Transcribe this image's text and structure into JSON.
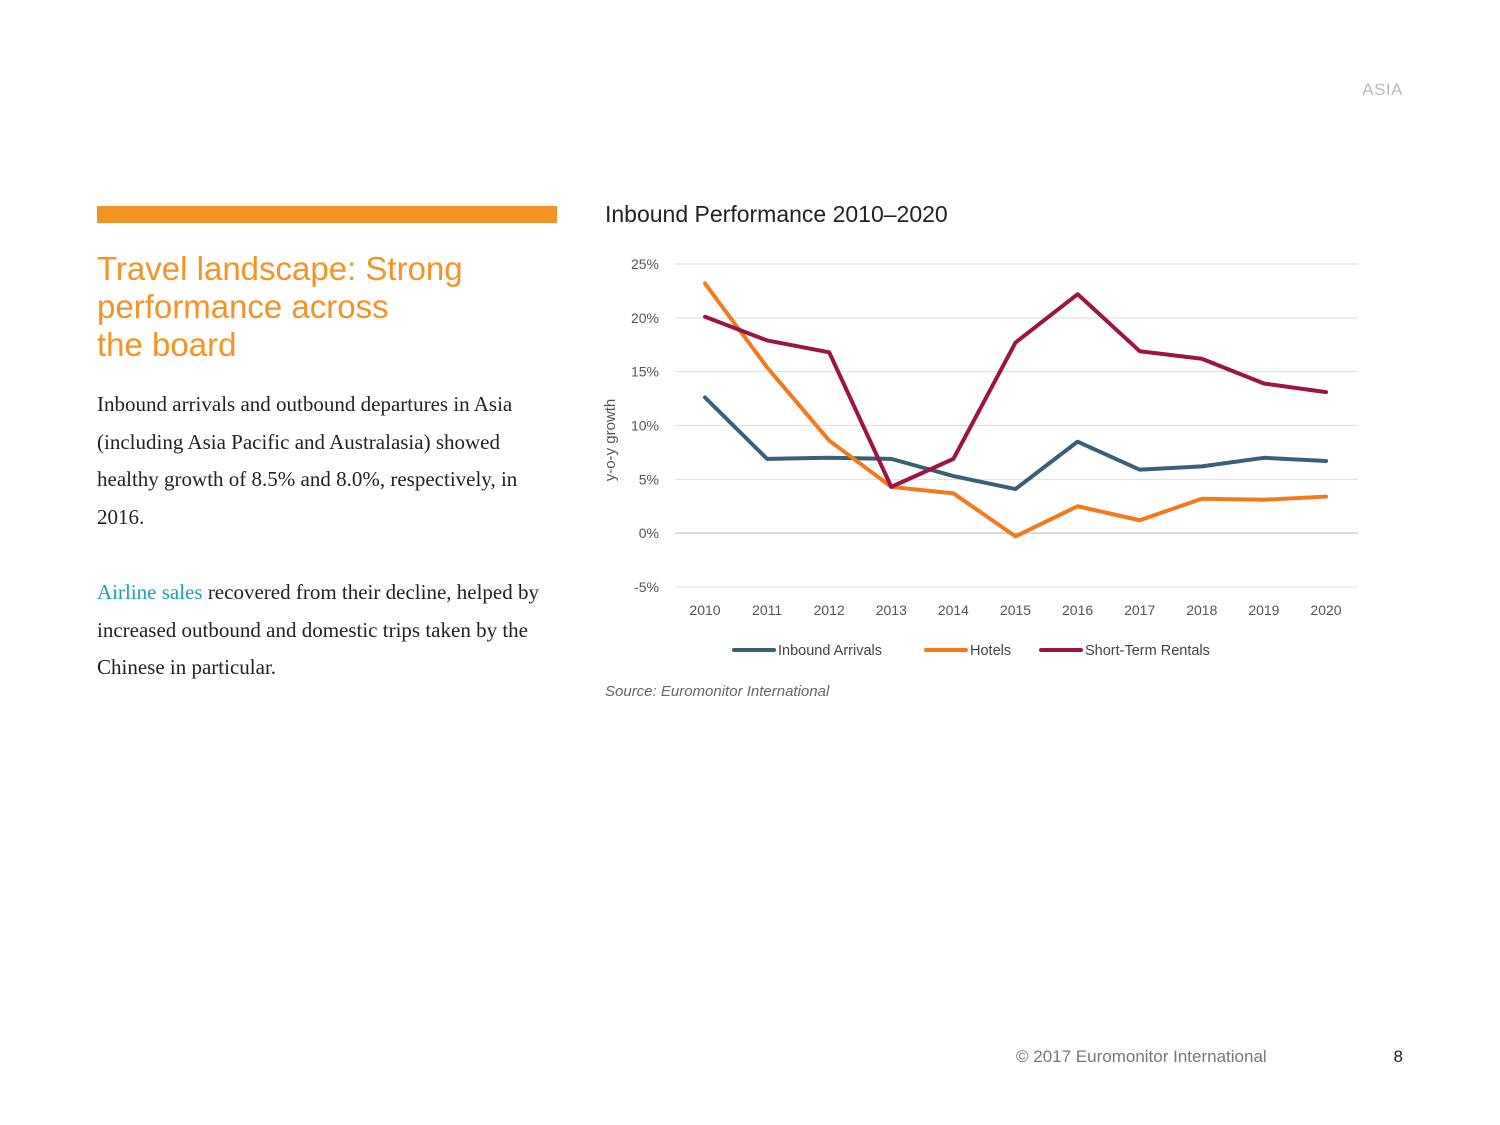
{
  "header": {
    "region": "ASIA"
  },
  "left": {
    "headline": "Travel landscape: Strong\nperformance across\nthe board",
    "paragraph1": "Inbound arrivals and outbound departures in Asia (including Asia Pacific and Australasia) showed healthy growth of 8.5% and 8.0%, respectively, in 2016.",
    "paragraph2_link": "Airline sales",
    "paragraph2_rest": " recovered from their decline, helped by increased outbound and domestic trips taken by the Chinese in particular.",
    "accent_color": "#f19425",
    "link_color": "#1aa3b4"
  },
  "chart_data": {
    "type": "line",
    "title": "Inbound Performance 2010–2020",
    "xlabel": "",
    "ylabel": "y-o-y growth",
    "x": [
      "2010",
      "2011",
      "2012",
      "2013",
      "2014",
      "2015",
      "2016",
      "2017",
      "2018",
      "2019",
      "2020"
    ],
    "ylim": [
      -5,
      25
    ],
    "yticks": [
      -5,
      0,
      5,
      10,
      15,
      20,
      25
    ],
    "ytick_labels": [
      "-5%",
      "0%",
      "5%",
      "10%",
      "15%",
      "20%",
      "25%"
    ],
    "grid": true,
    "legend_position": "bottom",
    "series": [
      {
        "name": "Inbound Arrivals",
        "color": "#386178",
        "values": [
          12.6,
          6.9,
          7.0,
          6.9,
          5.3,
          4.1,
          8.5,
          5.9,
          6.2,
          7.0,
          6.7
        ]
      },
      {
        "name": "Hotels",
        "color": "#f27a1a",
        "values": [
          23.2,
          15.4,
          8.6,
          4.3,
          3.7,
          -0.3,
          2.5,
          1.2,
          3.2,
          3.1,
          3.4
        ]
      },
      {
        "name": "Short-Term Rentals",
        "color": "#9b1443",
        "values": [
          20.1,
          17.9,
          16.8,
          4.3,
          6.9,
          17.7,
          22.2,
          16.9,
          16.2,
          13.9,
          13.1
        ]
      }
    ],
    "source": "Source: Euromonitor International"
  },
  "footer": {
    "copyright": "© 2017 Euromonitor International",
    "page": "8"
  }
}
